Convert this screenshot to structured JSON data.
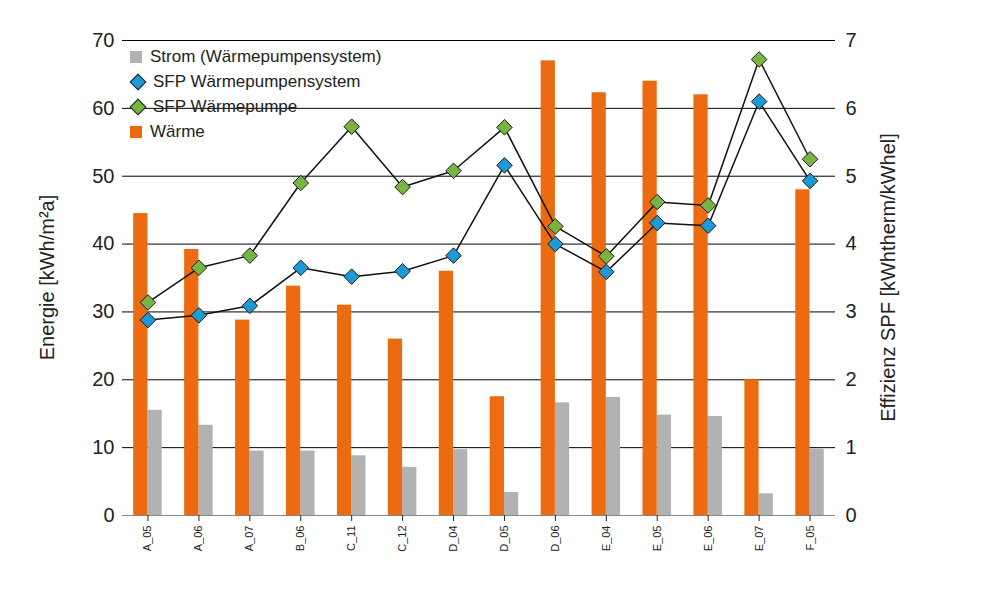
{
  "chart_data": {
    "type": "bar",
    "categories": [
      "A_05",
      "A_06",
      "A_07",
      "B_06",
      "C_11",
      "C_12",
      "D_04",
      "D_05",
      "D_06",
      "E_04",
      "E_05",
      "E_06",
      "E_07",
      "F_05"
    ],
    "ylabel": "Energie [kWh/m²a]",
    "y2label": "Effizienz SPF [kWhtherm/kWhel]",
    "ylim": [
      0,
      70
    ],
    "yticks": [
      0,
      10,
      20,
      30,
      40,
      50,
      60,
      70
    ],
    "y2lim": [
      0,
      7
    ],
    "y2ticks": [
      0,
      1,
      2,
      3,
      4,
      5,
      6,
      7
    ],
    "grid": true,
    "legend": "upper left",
    "series": [
      {
        "name": "Strom (Wärmepumpensystem)",
        "type": "bar",
        "color": "#b2b2b2",
        "values": [
          15.5,
          13.3,
          9.5,
          9.5,
          8.8,
          7.1,
          9.7,
          3.4,
          16.6,
          17.4,
          14.8,
          14.6,
          3.2,
          9.8
        ]
      },
      {
        "name": "SFP Wärmepumpensystem",
        "type": "line",
        "axis": "y2",
        "marker": "diamond",
        "color": "#1b9ad6",
        "values": [
          2.88,
          2.95,
          3.09,
          3.65,
          3.52,
          3.6,
          3.83,
          5.16,
          4.0,
          3.59,
          4.31,
          4.27,
          6.1,
          4.93
        ]
      },
      {
        "name": "SFP Wärmepumpe",
        "type": "line",
        "axis": "y2",
        "marker": "diamond",
        "color": "#77b441",
        "values": [
          3.14,
          3.65,
          3.83,
          4.9,
          5.73,
          4.84,
          5.08,
          5.72,
          4.26,
          3.82,
          4.62,
          4.57,
          6.72,
          5.25
        ]
      },
      {
        "name": "Wärme",
        "type": "bar",
        "color": "#ec6b10",
        "values": [
          44.5,
          39.2,
          28.8,
          33.8,
          31,
          26,
          36,
          17.5,
          67,
          62.3,
          64,
          62,
          20,
          48
        ]
      }
    ]
  }
}
